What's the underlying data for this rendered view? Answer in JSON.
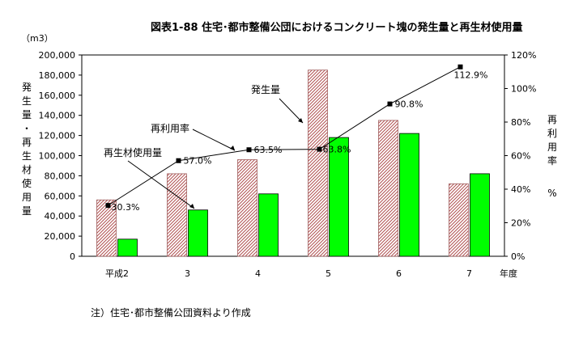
{
  "chart_data": {
    "type": "bar",
    "title": "図表1-88 住宅･都市整備公団におけるコンクリート塊の発生量と再生材使用量",
    "unit_left": "（m3）",
    "ylabel_left": "発生量・再生材使用量",
    "ylabel_right": [
      "再利用率",
      "%"
    ],
    "xlabel": "年度",
    "categories": [
      "平成2",
      "3",
      "4",
      "5",
      "6",
      "7"
    ],
    "ylim_left": [
      0,
      200000
    ],
    "yticks_left": [
      "0",
      "20,000",
      "40,000",
      "60,000",
      "80,000",
      "100,000",
      "120,000",
      "140,000",
      "160,000",
      "180,000",
      "200,000"
    ],
    "ylim_right": [
      0,
      120
    ],
    "yticks_right": [
      "0%",
      "20%",
      "40%",
      "60%",
      "80%",
      "100%",
      "120%"
    ],
    "grid": false,
    "series": [
      {
        "name": "発生量",
        "type": "bar",
        "values": [
          56000,
          82000,
          96000,
          185000,
          135000,
          72000
        ],
        "color": "#d4a0a0",
        "pattern": "diagonal-hatch"
      },
      {
        "name": "再生材使用量",
        "type": "bar",
        "values": [
          17000,
          46000,
          62000,
          118000,
          122000,
          82000
        ],
        "color": "#00ff00"
      },
      {
        "name": "再利用率",
        "type": "line",
        "axis": "right",
        "values": [
          30.3,
          57.0,
          63.5,
          63.8,
          90.8,
          112.9
        ],
        "labels": [
          "30.3%",
          "57.0%",
          "63.5%",
          "63.8%",
          "90.8%",
          "112.9%"
        ],
        "color": "#000000"
      }
    ],
    "annotations": [
      "発生量",
      "再利用率",
      "再生材使用量"
    ]
  },
  "footnote": "注）住宅･都市整備公団資料より作成"
}
